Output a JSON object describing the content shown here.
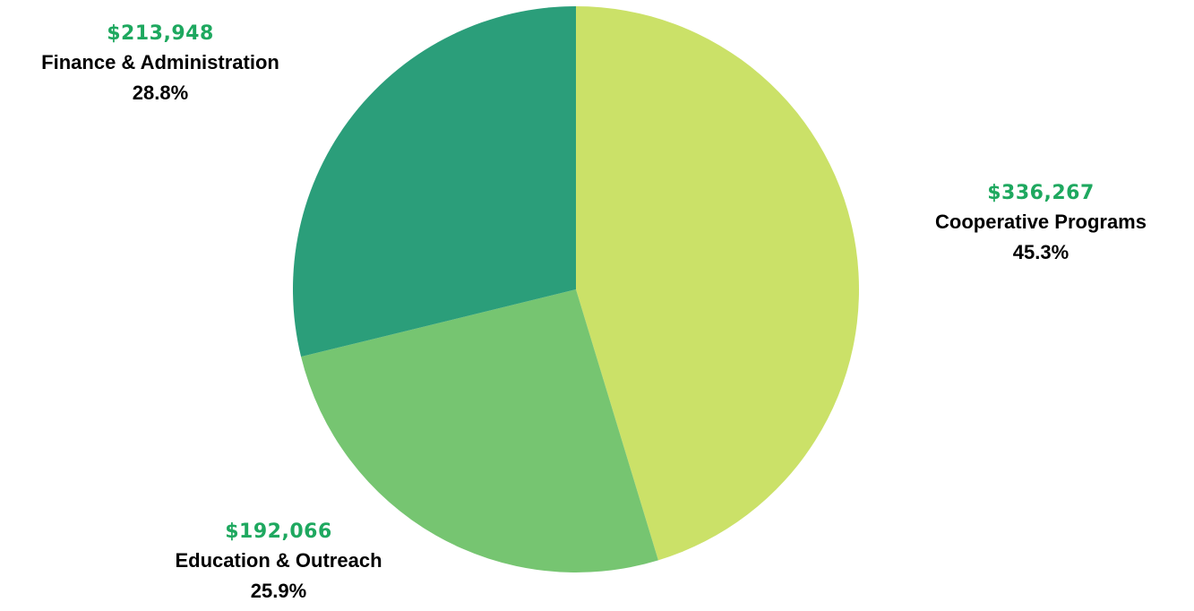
{
  "chart_data": {
    "type": "pie",
    "title": "",
    "slices": [
      {
        "label": "Cooperative Programs",
        "value": 336267,
        "value_label": "$336,267",
        "percent_label": "45.3%",
        "color": "#cbe168"
      },
      {
        "label": "Education & Outreach",
        "value": 192066,
        "value_label": "$192,066",
        "percent_label": "25.9%",
        "color": "#76c571"
      },
      {
        "label": "Finance & Administration",
        "value": 213948,
        "value_label": "$213,948",
        "percent_label": "28.8%",
        "color": "#2b9e7a"
      }
    ],
    "label_value_color": "#1ea85f",
    "start_angle": "12 o'clock",
    "direction": "clockwise",
    "legend": "none"
  }
}
